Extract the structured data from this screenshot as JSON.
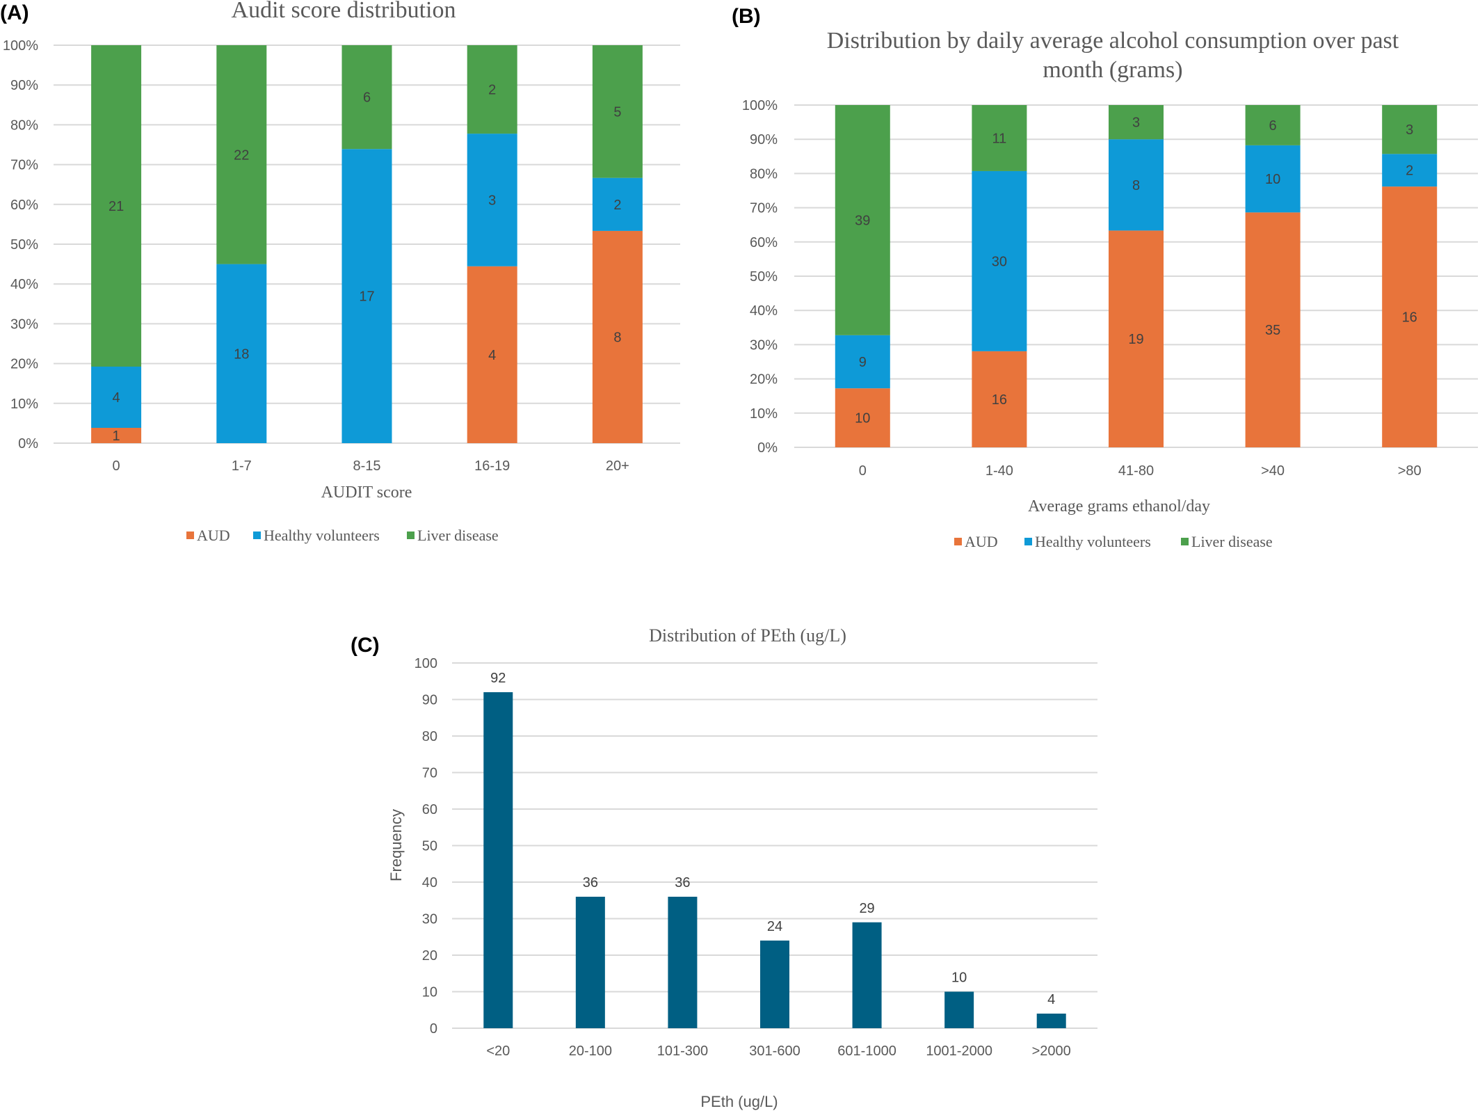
{
  "chart_data": [
    {
      "panel": "(A)",
      "type": "bar",
      "stacked": true,
      "percent_stacked": true,
      "title": "Audit score distribution",
      "xlabel": "AUDIT score",
      "ylabel": "",
      "ylim": [
        0,
        100
      ],
      "yticks": [
        "0%",
        "10%",
        "20%",
        "30%",
        "40%",
        "50%",
        "60%",
        "70%",
        "80%",
        "90%",
        "100%"
      ],
      "categories": [
        "0",
        "1-7",
        "8-15",
        "16-19",
        "20+"
      ],
      "series": [
        {
          "name": "AUD",
          "color": "#E8743B",
          "values": [
            1,
            0,
            0,
            4,
            8
          ]
        },
        {
          "name": "Healthy volunteers",
          "color": "#0E9AD7",
          "values": [
            4,
            18,
            17,
            3,
            2
          ]
        },
        {
          "name": "Liver disease",
          "color": "#4CA04C",
          "values": [
            21,
            22,
            6,
            2,
            5
          ]
        }
      ],
      "legend": "bottom"
    },
    {
      "panel": "(B)",
      "type": "bar",
      "stacked": true,
      "percent_stacked": true,
      "title": "Distribution by daily average alcohol consumption over past month (grams)",
      "title_lines": [
        "Distribution by daily average alcohol consumption over past",
        "month (grams)"
      ],
      "xlabel": "Average grams ethanol/day",
      "ylabel": "",
      "ylim": [
        0,
        100
      ],
      "yticks": [
        "0%",
        "10%",
        "20%",
        "30%",
        "40%",
        "50%",
        "60%",
        "70%",
        "80%",
        "90%",
        "100%"
      ],
      "categories": [
        "0",
        "1-40",
        "41-80",
        ">40",
        ">80"
      ],
      "series": [
        {
          "name": "AUD",
          "color": "#E8743B",
          "values": [
            10,
            16,
            19,
            35,
            16
          ]
        },
        {
          "name": "Healthy volunteers",
          "color": "#0E9AD7",
          "values": [
            9,
            30,
            8,
            10,
            2
          ]
        },
        {
          "name": "Liver disease",
          "color": "#4CA04C",
          "values": [
            39,
            11,
            3,
            6,
            3
          ]
        }
      ],
      "legend": "bottom"
    },
    {
      "panel": "(C)",
      "type": "bar",
      "stacked": false,
      "title": "Distribution of PEth (ug/L)",
      "xlabel": "PEth (ug/L)",
      "ylabel": "Frequency",
      "ylim": [
        0,
        100
      ],
      "yticks": [
        "0",
        "10",
        "20",
        "30",
        "40",
        "50",
        "60",
        "70",
        "80",
        "90",
        "100"
      ],
      "categories": [
        "<20",
        "20-100",
        "101-300",
        "301-600",
        "601-1000",
        "1001-2000",
        ">2000"
      ],
      "values": [
        92,
        36,
        36,
        24,
        29,
        10,
        4
      ],
      "color": "#005F83"
    }
  ]
}
